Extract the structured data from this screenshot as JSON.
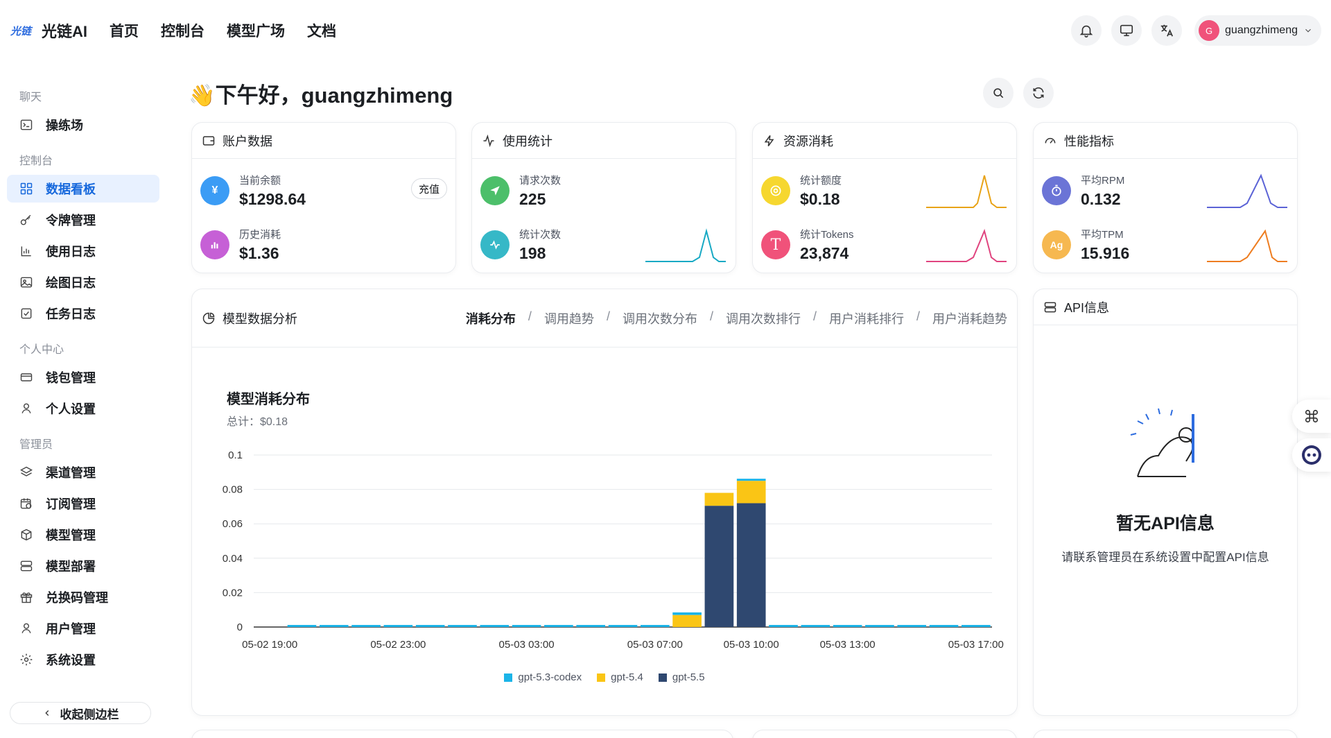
{
  "header": {
    "logo_mark": "光链",
    "brand": "光链AI",
    "nav": [
      "首页",
      "控制台",
      "模型广场",
      "文档"
    ],
    "user": {
      "avatar_letter": "G",
      "name": "guangzhimeng"
    }
  },
  "sidebar": {
    "groups": [
      {
        "title": "聊天",
        "items": [
          "操练场"
        ]
      },
      {
        "title": "控制台",
        "items": [
          "数据看板",
          "令牌管理",
          "使用日志",
          "绘图日志",
          "任务日志"
        ]
      },
      {
        "title": "个人中心",
        "items": [
          "钱包管理",
          "个人设置"
        ]
      },
      {
        "title": "管理员",
        "items": [
          "渠道管理",
          "订阅管理",
          "模型管理",
          "模型部署",
          "兑换码管理",
          "用户管理",
          "系统设置"
        ]
      }
    ],
    "active": "数据看板",
    "collapse_label": "收起侧边栏"
  },
  "greeting": "👋下午好，guangzhimeng",
  "cards": {
    "account": {
      "title": "账户数据",
      "balance_label": "当前余额",
      "balance_value": "$1298.64",
      "recharge_label": "充值",
      "spent_label": "历史消耗",
      "spent_value": "$1.36"
    },
    "usage": {
      "title": "使用统计",
      "requests_label": "请求次数",
      "requests_value": "225",
      "count_label": "统计次数",
      "count_value": "198"
    },
    "resource": {
      "title": "资源消耗",
      "quota_label": "统计额度",
      "quota_value": "$0.18",
      "tokens_label": "统计Tokens",
      "tokens_value": "23,874"
    },
    "performance": {
      "title": "性能指标",
      "rpm_label": "平均RPM",
      "rpm_value": "0.132",
      "tpm_label": "平均TPM",
      "tpm_value": "15.916",
      "tpm_icon_text": "Ag"
    }
  },
  "analysis": {
    "title": "模型数据分析",
    "tabs": [
      "消耗分布",
      "调用趋势",
      "调用次数分布",
      "调用次数排行",
      "用户消耗排行",
      "用户消耗趋势"
    ],
    "active_tab": "消耗分布",
    "chart_title": "模型消耗分布",
    "chart_subtitle": "总计：$0.18"
  },
  "api_info": {
    "title": "API信息",
    "empty_title": "暂无API信息",
    "empty_desc": "请联系管理员在系统设置中配置API信息"
  },
  "colors": {
    "accent": "#1668dc",
    "codex": "#1bb4e8",
    "gpt54": "#fac515",
    "gpt55": "#2f4870"
  },
  "chart_data": {
    "type": "bar",
    "stacked": true,
    "ylim": [
      0,
      0.1
    ],
    "yticks": [
      "0",
      "0.02",
      "0.04",
      "0.06",
      "0.08",
      "0.1"
    ],
    "categories": [
      "05-02 19:00",
      "05-02 20:00",
      "05-02 21:00",
      "05-02 22:00",
      "05-02 23:00",
      "05-03 00:00",
      "05-03 01:00",
      "05-03 02:00",
      "05-03 03:00",
      "05-03 04:00",
      "05-03 05:00",
      "05-03 06:00",
      "05-03 07:00",
      "05-03 08:00",
      "05-03 09:00",
      "05-03 10:00",
      "05-03 11:00",
      "05-03 12:00",
      "05-03 13:00",
      "05-03 14:00",
      "05-03 15:00",
      "05-03 16:00",
      "05-03 17:00"
    ],
    "xtick_labels": [
      "05-02 19:00",
      "05-02 23:00",
      "05-03 03:00",
      "05-03 07:00",
      "05-03 10:00",
      "05-03 13:00",
      "05-03 17:00"
    ],
    "series": [
      {
        "name": "gpt-5.5",
        "color": "#2f4870",
        "values": [
          0,
          0,
          0,
          0,
          0,
          0,
          0,
          0,
          0,
          0,
          0,
          0,
          0,
          0,
          0.0705,
          0.072,
          0,
          0,
          0,
          0,
          0,
          0,
          0
        ]
      },
      {
        "name": "gpt-5.4",
        "color": "#fac515",
        "values": [
          0,
          0,
          0,
          0,
          0,
          0,
          0,
          0,
          0,
          0,
          0,
          0,
          0,
          0.007,
          0.0075,
          0.013,
          0,
          0,
          0,
          0,
          0,
          0,
          0
        ]
      },
      {
        "name": "gpt-5.3-codex",
        "color": "#1bb4e8",
        "values": [
          0,
          0,
          0,
          0,
          0,
          0,
          0,
          0,
          0,
          0,
          0,
          0,
          0,
          0.0015,
          0,
          0.0012,
          0,
          0,
          0,
          0,
          0,
          0,
          0
        ]
      }
    ],
    "legend": [
      "gpt-5.3-codex",
      "gpt-5.4",
      "gpt-5.5"
    ],
    "legend_placement": "bottom"
  }
}
